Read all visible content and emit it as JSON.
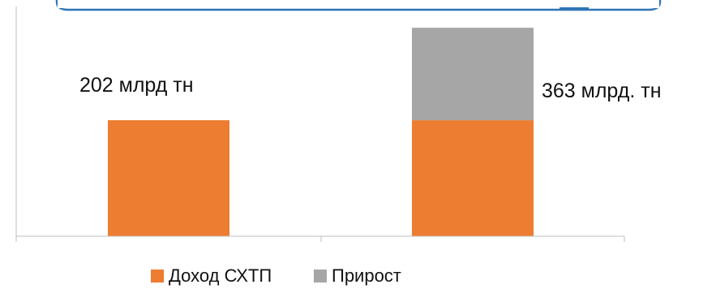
{
  "chart_data": {
    "type": "bar",
    "stacked": true,
    "categories": [
      "",
      ""
    ],
    "series": [
      {
        "name": "Доход СХТП",
        "color": "#ED7D31",
        "values": [
          202,
          202
        ]
      },
      {
        "name": "Прирост",
        "color": "#A6A6A6",
        "values": [
          0,
          161
        ]
      }
    ],
    "data_labels": [
      "202 млрд тн",
      "363 млрд. тн"
    ],
    "ylim": [
      0,
      400
    ],
    "grid": false,
    "legend_position": "bottom"
  },
  "callout_border_color": "#2E75B6"
}
